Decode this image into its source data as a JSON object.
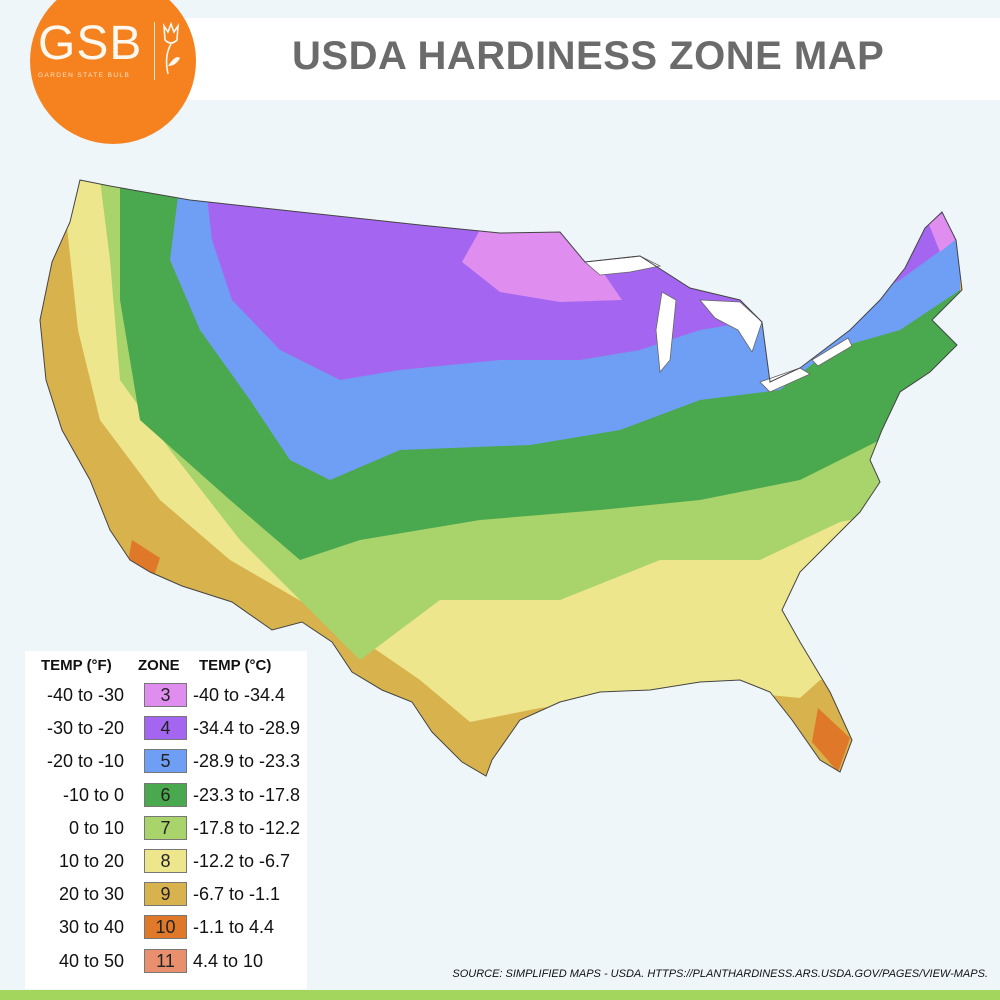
{
  "header": {
    "title": "USDA HARDINESS ZONE MAP"
  },
  "logo": {
    "text": "GSB",
    "subtitle": "GARDEN STATE BULB",
    "color": "#f5821f"
  },
  "legend": {
    "headers": {
      "fahrenheit": "TEMP (°F)",
      "zone": "ZONE",
      "celsius": "TEMP (°C)"
    },
    "zones": [
      {
        "f": "-40 to -30",
        "zone": "3",
        "c": "-40 to -34.4",
        "color": "#df8ef0"
      },
      {
        "f": "-30 to -20",
        "zone": "4",
        "c": "-34.4 to -28.9",
        "color": "#a466f0"
      },
      {
        "f": "-20 to -10",
        "zone": "5",
        "c": "-28.9 to -23.3",
        "color": "#6f9ef5"
      },
      {
        "f": "-10 to 0",
        "zone": "6",
        "c": "-23.3 to -17.8",
        "color": "#4aa84e"
      },
      {
        "f": "0 to 10",
        "zone": "7",
        "c": "-17.8 to -12.2",
        "color": "#a9d46c"
      },
      {
        "f": "10 to 20",
        "zone": "8",
        "c": "-12.2 to -6.7",
        "color": "#ede68c"
      },
      {
        "f": "20 to 30",
        "zone": "9",
        "c": "-6.7 to -1.1",
        "color": "#d8b24c"
      },
      {
        "f": "30 to 40",
        "zone": "10",
        "c": "-1.1 to 4.4",
        "color": "#e0782a"
      },
      {
        "f": "40 to 50",
        "zone": "11",
        "c": "4.4 to 10",
        "color": "#e8906e"
      }
    ]
  },
  "footer": {
    "source": "SOURCE: SIMPLIFIED MAPS - USDA. HTTPS://PLANTHARDINESS.ARS.USDA.GOV/PAGES/VIEW-MAPS.",
    "bar_color": "#a3d65c"
  }
}
